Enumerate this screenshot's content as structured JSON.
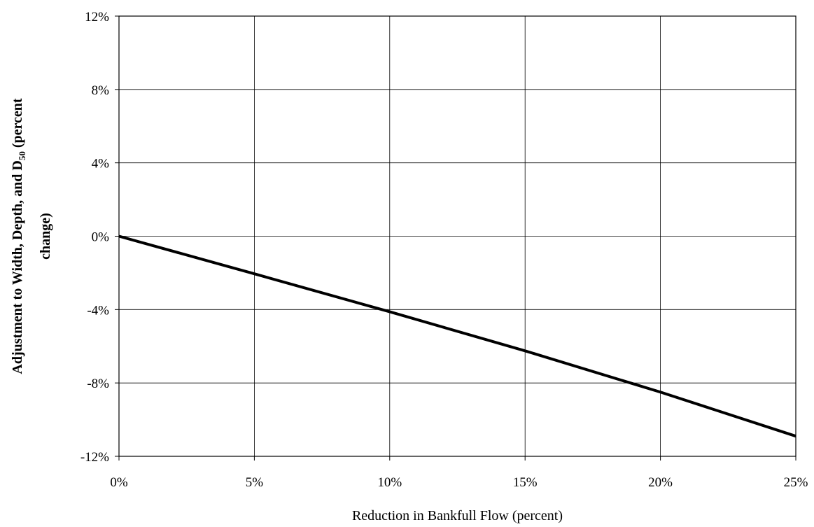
{
  "chart_data": {
    "type": "line",
    "xlabel": "Reduction in Bankfull Flow (percent)",
    "ylabel": {
      "line1_before": "Adjustment to Width, Depth, and D",
      "line1_subscript": "50",
      "line1_after": " (percent",
      "line2": "change)"
    },
    "xlim": [
      0,
      25
    ],
    "ylim": [
      -12,
      12
    ],
    "x_ticks": [
      0,
      5,
      10,
      15,
      20,
      25
    ],
    "y_ticks": [
      12,
      8,
      4,
      0,
      -4,
      -8,
      -12
    ],
    "x_tick_labels": [
      "0%",
      "5%",
      "10%",
      "15%",
      "20%",
      "25%"
    ],
    "y_tick_labels": [
      "12%",
      "8%",
      "4%",
      "0%",
      "-4%",
      "-8%",
      "-12%"
    ],
    "grid": true,
    "legend": "none",
    "series": [
      {
        "x": [
          0,
          5,
          10,
          15,
          20,
          25
        ],
        "y": [
          0,
          -2.05,
          -4.12,
          -6.25,
          -8.5,
          -10.9
        ],
        "color": "#000000"
      }
    ]
  }
}
